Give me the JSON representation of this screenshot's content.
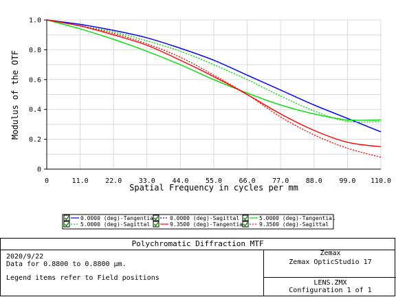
{
  "chart_data": {
    "type": "line",
    "xlabel": "Spatial Frequency in cycles per mm",
    "ylabel": "Modulus of the OTF",
    "xlim": [
      0,
      110
    ],
    "ylim": [
      0,
      1
    ],
    "xticks": [
      "0",
      "11.0",
      "22.0",
      "33.0",
      "44.0",
      "55.0",
      "66.0",
      "77.0",
      "88.0",
      "99.0",
      "110.0"
    ],
    "yticks": [
      "0",
      "0.2",
      "0.4",
      "0.6",
      "0.8",
      "1.0"
    ],
    "grid": true,
    "legend_position": "bottom",
    "x": [
      0,
      11,
      22,
      33,
      44,
      55,
      66,
      77,
      88,
      99,
      110
    ],
    "series": [
      {
        "name": "0.0000 (deg)-Tangential",
        "color": "#0000ff",
        "dash": "solid",
        "values": [
          1.0,
          0.97,
          0.93,
          0.88,
          0.81,
          0.73,
          0.63,
          0.53,
          0.43,
          0.34,
          0.25
        ]
      },
      {
        "name": "0.0000 (deg)-Sagittal",
        "color": "#0000ff",
        "dash": "dotted",
        "values": [
          1.0,
          0.97,
          0.93,
          0.88,
          0.81,
          0.73,
          0.63,
          0.53,
          0.43,
          0.34,
          0.25
        ]
      },
      {
        "name": "5.0000 (deg)-Tangential",
        "color": "#00dd00",
        "dash": "solid",
        "values": [
          1.0,
          0.94,
          0.87,
          0.79,
          0.7,
          0.6,
          0.51,
          0.43,
          0.37,
          0.33,
          0.33
        ]
      },
      {
        "name": "5.0000 (deg)-Sagittal",
        "color": "#00dd00",
        "dash": "dotted",
        "values": [
          1.0,
          0.96,
          0.92,
          0.86,
          0.79,
          0.7,
          0.6,
          0.49,
          0.39,
          0.32,
          0.32
        ]
      },
      {
        "name": "9.3500 (deg)-Tangential",
        "color": "#ff0000",
        "dash": "solid",
        "values": [
          1.0,
          0.96,
          0.9,
          0.83,
          0.73,
          0.62,
          0.5,
          0.37,
          0.26,
          0.18,
          0.15
        ]
      },
      {
        "name": "9.3500 (deg)-Sagittal",
        "color": "#ff0000",
        "dash": "dotted",
        "values": [
          1.0,
          0.96,
          0.91,
          0.84,
          0.75,
          0.63,
          0.5,
          0.35,
          0.23,
          0.14,
          0.08
        ]
      }
    ]
  },
  "footer": {
    "title": "Polychromatic Diffraction MTF",
    "date": "2020/9/22",
    "data_line": "Data for 0.8800 to 0.8800 µm.",
    "legend_note": "Legend items refer to Field positions",
    "company": "Zemax",
    "product": "Zemax OpticStudio 17",
    "file": "LENS.ZMX",
    "configuration": "Configuration 1 of 1"
  },
  "colors": {
    "grid": "#d8d8d8",
    "axis": "#000000"
  }
}
